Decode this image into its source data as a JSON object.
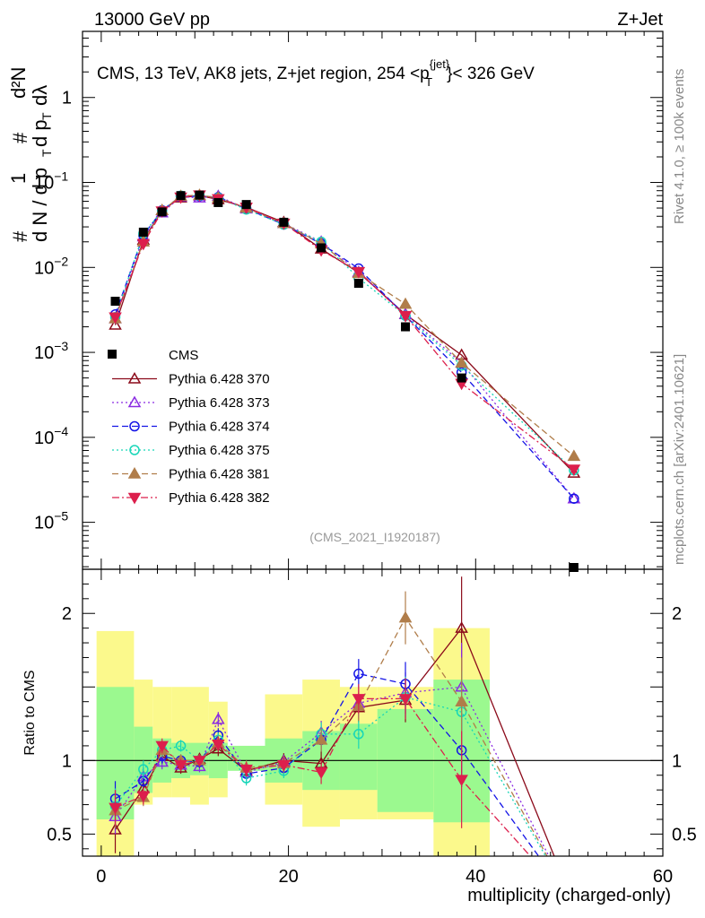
{
  "header": {
    "left": "13000 GeV pp",
    "right": "Z+Jet"
  },
  "side_labels": {
    "rivet": "Rivet 4.1.0, ≥ 100k events",
    "site": "mcplots.cern.ch [arXiv:2401.10621]"
  },
  "chart_data": {
    "type": "line",
    "title": "CMS, 13 TeV, AK8 jets, Z+jet region, 254 <p",
    "title_sup": "{jet}",
    "title_sub": "T",
    "title_end": "}< 326 GeV",
    "analysis_tag": "(CMS_2021_I1920187)",
    "xlabel": "multiplicity (charged-only)",
    "ylabel_main": "1/dN/dp_T d^2N/dp_T dλ",
    "ylabel_ratio": "Ratio to CMS",
    "xlim": [
      -2,
      60
    ],
    "ylim_main": [
      2.8e-06,
      6
    ],
    "ylim_ratio": [
      0.35,
      2.3
    ],
    "yscale_main": "log",
    "x_ticks": [
      0,
      20,
      40,
      60
    ],
    "main_y_ticks": [
      {
        "value": 1,
        "label": "1",
        "sup": ""
      },
      {
        "value": 0.1,
        "label": "10",
        "sup": "−1"
      },
      {
        "value": 0.01,
        "label": "10",
        "sup": "−2"
      },
      {
        "value": 0.001,
        "label": "10",
        "sup": "−3"
      },
      {
        "value": 0.0001,
        "label": "10",
        "sup": "−4"
      },
      {
        "value": 1e-05,
        "label": "10",
        "sup": "−5"
      }
    ],
    "ratio_y_ticks": [
      {
        "value": 2,
        "label": "2"
      },
      {
        "value": 1,
        "label": "1"
      },
      {
        "value": 0.5,
        "label": "0.5"
      }
    ],
    "bins": [
      [
        -0.5,
        3.5
      ],
      [
        3.5,
        5.5
      ],
      [
        5.5,
        7.5
      ],
      [
        7.5,
        9.5
      ],
      [
        9.5,
        11.5
      ],
      [
        11.5,
        13.5
      ],
      [
        13.5,
        17.5
      ],
      [
        17.5,
        21.5
      ],
      [
        21.5,
        25.5
      ],
      [
        25.5,
        29.5
      ],
      [
        29.5,
        35.5
      ],
      [
        35.5,
        41.5
      ]
    ],
    "ratio_band_stat": [
      [
        0.6,
        1.5
      ],
      [
        0.78,
        1.23
      ],
      [
        0.85,
        1.15
      ],
      [
        0.88,
        1.12
      ],
      [
        0.9,
        1.12
      ],
      [
        0.88,
        1.12
      ],
      [
        0.93,
        1.1
      ],
      [
        0.85,
        1.15
      ],
      [
        0.8,
        1.2
      ],
      [
        0.8,
        1.25
      ],
      [
        0.65,
        1.35
      ],
      [
        0.58,
        1.55
      ]
    ],
    "ratio_band_syst": [
      [
        0.35,
        1.88
      ],
      [
        0.7,
        1.55
      ],
      [
        0.75,
        1.5
      ],
      [
        0.75,
        1.5
      ],
      [
        0.7,
        1.5
      ],
      [
        0.75,
        1.4
      ],
      [
        1.0,
        1.0
      ],
      [
        0.7,
        1.45
      ],
      [
        0.55,
        1.55
      ],
      [
        0.6,
        1.5
      ],
      [
        0.6,
        1.5
      ],
      [
        0.35,
        1.9
      ]
    ],
    "data_series": {
      "name": "CMS",
      "color": "#000000",
      "x": [
        1.5,
        4.5,
        6.5,
        8.5,
        10.5,
        12.5,
        15.5,
        19.5,
        23.5,
        27.5,
        32.5,
        38.5,
        50.5
      ],
      "values": [
        0.004,
        0.026,
        0.045,
        0.07,
        0.071,
        0.058,
        0.055,
        0.034,
        0.017,
        0.0065,
        0.002,
        0.0005,
        2.9e-06
      ]
    },
    "series": [
      {
        "name": "Pythia 6.428 370",
        "color": "#8b0a1a",
        "marker": "triangle-up-open",
        "dash": "solid",
        "x": [
          1.5,
          4.5,
          6.5,
          8.5,
          10.5,
          12.5,
          15.5,
          19.5,
          23.5,
          27.5,
          32.5,
          38.5,
          50.5
        ],
        "values": [
          0.0021,
          0.021,
          0.047,
          0.066,
          0.07,
          0.063,
          0.051,
          0.034,
          0.0165,
          0.0087,
          0.0028,
          0.00093,
          3.8e-05
        ],
        "ratio": [
          0.53,
          0.81,
          1.03,
          0.95,
          1.01,
          1.08,
          0.93,
          1.0,
          0.98,
          1.36,
          1.41,
          1.9,
          0.02
        ],
        "ratio_err": [
          0.16,
          0.07,
          0.05,
          0.04,
          0.04,
          0.05,
          0.05,
          0.05,
          0.08,
          0.1,
          0.15,
          0.35,
          0
        ]
      },
      {
        "name": "Pythia 6.428 373",
        "color": "#8a2be2",
        "marker": "triangle-up-open",
        "dash": "dotted",
        "x": [
          1.5,
          4.5,
          6.5,
          8.5,
          10.5,
          12.5,
          15.5,
          19.5,
          23.5,
          27.5,
          32.5,
          38.5,
          50.5
        ],
        "values": [
          0.0025,
          0.023,
          0.044,
          0.068,
          0.066,
          0.069,
          0.049,
          0.033,
          0.02,
          0.0088,
          0.0028,
          0.00075,
          1.9e-05
        ],
        "ratio": [
          0.62,
          0.89,
          0.99,
          0.97,
          0.96,
          1.28,
          0.92,
          0.99,
          1.19,
          1.39,
          1.46,
          1.5,
          0.02
        ],
        "ratio_err": [
          0.12,
          0.06,
          0.05,
          0.04,
          0.04,
          0.05,
          0.05,
          0.05,
          0.08,
          0.1,
          0.14,
          0.3,
          0
        ]
      },
      {
        "name": "Pythia 6.428 374",
        "color": "#1414e6",
        "marker": "circle-open",
        "dash": "dashed",
        "x": [
          1.5,
          4.5,
          6.5,
          8.5,
          10.5,
          12.5,
          15.5,
          19.5,
          23.5,
          27.5,
          32.5,
          38.5,
          50.5
        ],
        "values": [
          0.0028,
          0.024,
          0.047,
          0.069,
          0.069,
          0.067,
          0.049,
          0.032,
          0.019,
          0.0097,
          0.0027,
          0.00058,
          1.9e-05
        ],
        "ratio": [
          0.74,
          0.86,
          1.03,
          1.0,
          0.99,
          1.17,
          0.91,
          0.95,
          1.14,
          1.59,
          1.52,
          1.07,
          0.02
        ],
        "ratio_err": [
          0.12,
          0.06,
          0.05,
          0.04,
          0.04,
          0.05,
          0.05,
          0.05,
          0.08,
          0.1,
          0.15,
          0.25,
          0
        ]
      },
      {
        "name": "Pythia 6.428 375",
        "color": "#17d6b8",
        "marker": "circle-open",
        "dash": "dotted",
        "x": [
          1.5,
          4.5,
          6.5,
          8.5,
          10.5,
          12.5,
          15.5,
          19.5,
          23.5,
          27.5,
          32.5,
          38.5,
          50.5
        ],
        "values": [
          0.0026,
          0.025,
          0.046,
          0.07,
          0.07,
          0.066,
          0.048,
          0.032,
          0.02,
          0.0075,
          0.0027,
          0.0007,
          4.1e-05
        ],
        "ratio": [
          0.69,
          0.94,
          1.07,
          1.1,
          1.0,
          1.14,
          0.88,
          0.93,
          1.18,
          1.18,
          1.43,
          1.33,
          0.02
        ],
        "ratio_err": [
          0.12,
          0.06,
          0.05,
          0.04,
          0.04,
          0.05,
          0.05,
          0.05,
          0.08,
          0.1,
          0.14,
          0.28,
          0
        ]
      },
      {
        "name": "Pythia 6.428 381",
        "color": "#b07d4a",
        "marker": "triangle-up-filled",
        "dash": "dashed",
        "x": [
          1.5,
          4.5,
          6.5,
          8.5,
          10.5,
          12.5,
          15.5,
          19.5,
          23.5,
          27.5,
          32.5,
          38.5,
          50.5
        ],
        "values": [
          0.0025,
          0.02,
          0.047,
          0.069,
          0.071,
          0.066,
          0.05,
          0.033,
          0.019,
          0.0085,
          0.0037,
          0.00075,
          6e-05
        ],
        "ratio": [
          0.66,
          0.75,
          1.07,
          1.0,
          1.0,
          1.12,
          0.95,
          0.98,
          1.14,
          1.37,
          1.97,
          1.4,
          0.02
        ],
        "ratio_err": [
          0.12,
          0.06,
          0.05,
          0.04,
          0.04,
          0.05,
          0.05,
          0.05,
          0.08,
          0.1,
          0.18,
          0.3,
          0
        ]
      },
      {
        "name": "Pythia 6.428 382",
        "color": "#dc1f4c",
        "marker": "triangle-down-filled",
        "dash": "dashdot",
        "x": [
          1.5,
          4.5,
          6.5,
          8.5,
          10.5,
          12.5,
          15.5,
          19.5,
          23.5,
          27.5,
          32.5,
          38.5,
          50.5
        ],
        "values": [
          0.0026,
          0.019,
          0.046,
          0.067,
          0.071,
          0.064,
          0.051,
          0.033,
          0.016,
          0.0089,
          0.0027,
          0.00043,
          4.2e-05
        ],
        "ratio": [
          0.68,
          0.76,
          1.1,
          0.97,
          1.0,
          1.11,
          0.94,
          0.97,
          0.92,
          1.42,
          1.42,
          0.87,
          0.02
        ],
        "ratio_err": [
          0.12,
          0.06,
          0.05,
          0.04,
          0.04,
          0.05,
          0.05,
          0.05,
          0.08,
          0.1,
          0.14,
          0.33,
          0
        ]
      }
    ]
  }
}
